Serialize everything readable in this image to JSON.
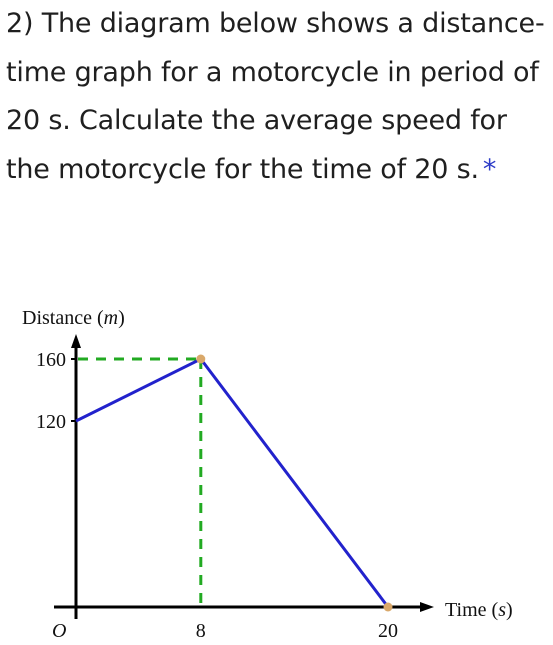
{
  "question": {
    "text": "2) The diagram below shows a distance-time graph for a motorcycle in period of 20 s. Calculate the average speed for the motorcycle for the time of 20 s.",
    "required_marker": "*"
  },
  "chart_data": {
    "type": "line",
    "ylabel_text": "Distance ",
    "ylabel_unit": "m",
    "xlabel_text": "Time ",
    "xlabel_unit": "s",
    "origin_label": "O",
    "x_ticks": [
      "8",
      "20"
    ],
    "y_ticks": [
      "160",
      "120"
    ],
    "xlim": [
      0,
      22
    ],
    "ylim": [
      0,
      200
    ],
    "series": [
      {
        "x": [
          0,
          8,
          20
        ],
        "y": [
          120,
          160,
          0
        ]
      }
    ],
    "colors": {
      "line": "#2222cc",
      "dashed_guide": "#22aa22",
      "point": "#d9a86a",
      "axis": "#000000"
    }
  }
}
